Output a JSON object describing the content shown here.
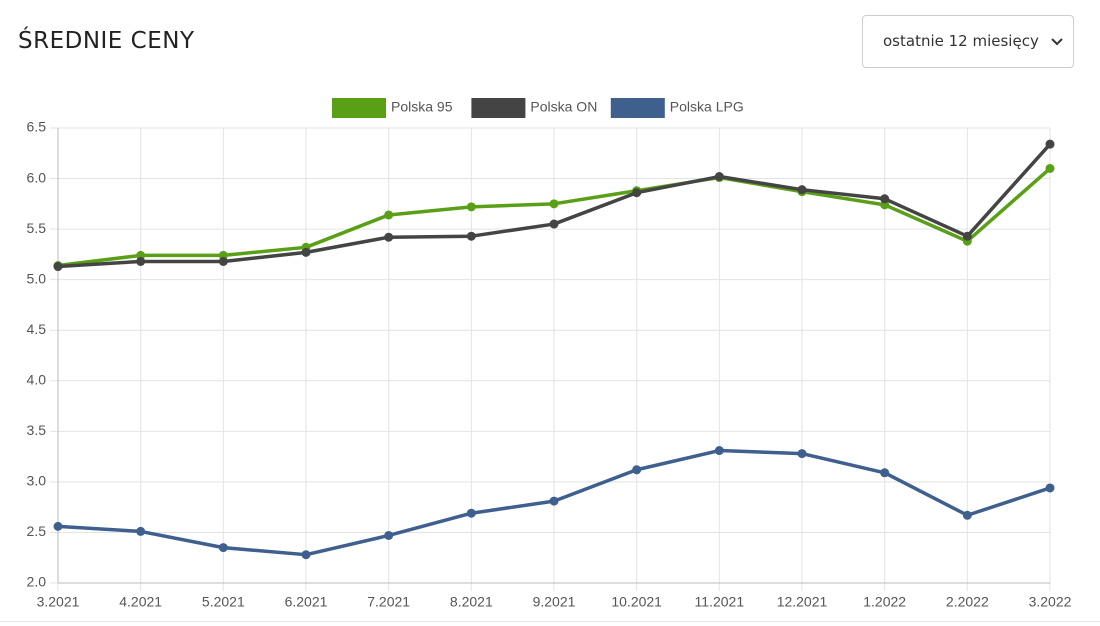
{
  "header": {
    "title": "ŚREDNIE CENY",
    "period_select": "ostatnie 12 miesięcy"
  },
  "chart_data": {
    "type": "line",
    "categories": [
      "3.2021",
      "4.2021",
      "5.2021",
      "6.2021",
      "7.2021",
      "8.2021",
      "9.2021",
      "10.2021",
      "11.2021",
      "12.2021",
      "1.2022",
      "2.2022",
      "3.2022"
    ],
    "series": [
      {
        "name": "Polska 95",
        "color": "#5aa017",
        "values": [
          5.14,
          5.24,
          5.24,
          5.32,
          5.64,
          5.72,
          5.75,
          5.88,
          6.01,
          5.87,
          5.74,
          5.38,
          6.1
        ]
      },
      {
        "name": "Polska ON",
        "color": "#444444",
        "values": [
          5.13,
          5.18,
          5.18,
          5.27,
          5.42,
          5.43,
          5.55,
          5.86,
          6.02,
          5.89,
          5.8,
          5.43,
          6.34
        ]
      },
      {
        "name": "Polska LPG",
        "color": "#3f5f8f",
        "values": [
          2.56,
          2.51,
          2.35,
          2.28,
          2.47,
          2.69,
          2.81,
          3.12,
          3.31,
          3.28,
          3.09,
          2.67,
          2.94
        ]
      }
    ],
    "ylim": [
      2,
      6.5
    ],
    "yticks": [
      {
        "value": 2,
        "label": "2.0"
      },
      2.5,
      {
        "value": 3,
        "label": "3.0"
      },
      3.5,
      {
        "value": 4,
        "label": "4.0"
      },
      4.5,
      {
        "value": 5,
        "label": "5.0"
      },
      5.5,
      {
        "value": 6,
        "label": "6.0"
      },
      6.5
    ],
    "grid": true,
    "legend": "top"
  }
}
